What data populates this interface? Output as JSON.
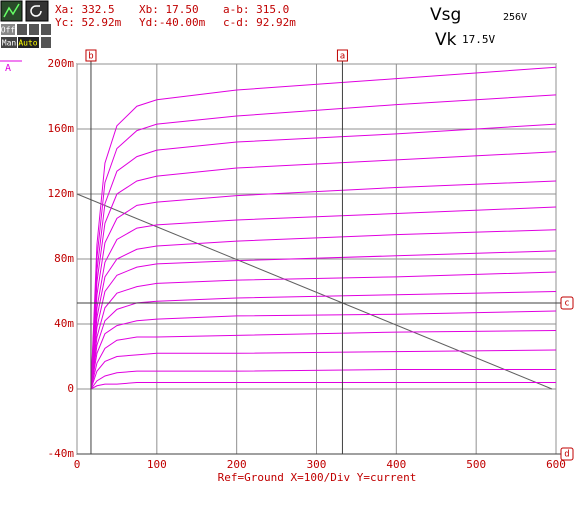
{
  "toolbar": {
    "off": "Off",
    "man": "Man",
    "auto": "Auto"
  },
  "readouts": [
    "Xa: 332.5",
    "Xb: 17.50",
    "a-b: 315.0",
    "Yc: 52.92m",
    "Yd:-40.00m",
    "c-d: 92.92m"
  ],
  "notes": {
    "vsg": "Vsg",
    "vsg_value": "256V",
    "vk": "Vk",
    "vk_value": "17.5V",
    "trace": "A"
  },
  "chart_data": {
    "type": "line",
    "footer": "Ref=Ground  X=100/Div Y=current",
    "color": "#e000e0",
    "x": [
      17.5,
      25,
      35,
      50,
      75,
      100,
      200,
      400,
      600
    ],
    "series": [
      {
        "values": [
          0,
          89,
          139,
          162,
          174,
          178,
          184,
          191,
          198
        ]
      },
      {
        "values": [
          0,
          81,
          127,
          148,
          159,
          163,
          168,
          175,
          181
        ]
      },
      {
        "values": [
          0,
          73,
          114,
          134,
          143,
          147,
          152,
          157,
          163
        ]
      },
      {
        "values": [
          0,
          66,
          102,
          120,
          128,
          131,
          136,
          141,
          146
        ]
      },
      {
        "values": [
          0,
          58,
          90,
          105,
          113,
          115,
          119,
          124,
          128
        ]
      },
      {
        "values": [
          0,
          50,
          78,
          92,
          99,
          101,
          104,
          108,
          112
        ]
      },
      {
        "values": [
          0,
          44,
          69,
          80,
          86,
          88,
          91,
          95,
          98
        ]
      },
      {
        "values": [
          0,
          38,
          60,
          70,
          75,
          77,
          79,
          82,
          85
        ]
      },
      {
        "values": [
          0,
          32,
          50,
          59,
          63,
          65,
          67,
          69,
          72
        ]
      },
      {
        "values": [
          0,
          27,
          42,
          49,
          53,
          54,
          56,
          58,
          60
        ]
      },
      {
        "values": [
          0,
          22,
          34,
          39,
          42,
          43,
          45,
          46,
          48
        ]
      },
      {
        "values": [
          0,
          16,
          25,
          30,
          32,
          32,
          33,
          35,
          36
        ]
      },
      {
        "values": [
          0,
          11,
          17,
          20,
          21,
          22,
          22,
          23,
          24
        ]
      },
      {
        "values": [
          0,
          5,
          8,
          10,
          11,
          11,
          11,
          12,
          12
        ]
      },
      {
        "values": [
          0,
          2,
          3,
          3,
          4,
          4,
          4,
          4,
          4
        ]
      }
    ],
    "load_line": {
      "x": [
        0,
        595
      ],
      "values": [
        120,
        0
      ],
      "color": "#606060"
    },
    "cursors": [
      {
        "label": "b",
        "axis": "x",
        "value": 17.5
      },
      {
        "label": "a",
        "axis": "x",
        "value": 332.5
      },
      {
        "label": "c",
        "axis": "y",
        "value": 52.92
      },
      {
        "label": "d",
        "axis": "y",
        "value": -40
      }
    ],
    "xlim": [
      0,
      600
    ],
    "xticks": [
      0,
      100,
      200,
      300,
      400,
      500,
      600
    ],
    "ylim": [
      -40,
      200
    ],
    "yticks": [
      {
        "value": -40,
        "label": "-40m"
      },
      0,
      {
        "value": 40,
        "label": "40m"
      },
      {
        "value": 80,
        "label": "80m"
      },
      {
        "value": 120,
        "label": "120m"
      },
      {
        "value": 160,
        "label": "160m"
      },
      {
        "value": 200,
        "label": "200m"
      }
    ],
    "grid": true
  }
}
